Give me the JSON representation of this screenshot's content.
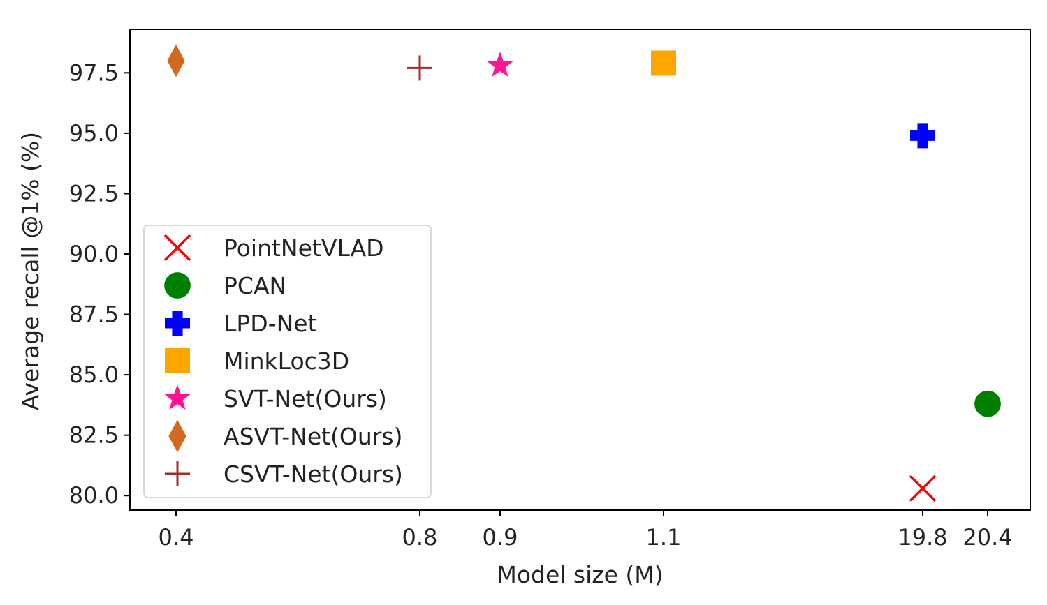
{
  "chart_data": {
    "type": "scatter",
    "title": "",
    "xlabel": "Model size (M)",
    "ylabel": "Average recall @1% (%)",
    "x_scale": "categorical-like (nonlinear ticks)",
    "xticks": [
      "0.4",
      "0.8",
      "0.9",
      "1.1",
      "19.8",
      "20.4"
    ],
    "yticks": [
      "80.0",
      "82.5",
      "85.0",
      "87.5",
      "90.0",
      "92.5",
      "95.0",
      "97.5"
    ],
    "ylim": [
      79.4,
      99.3
    ],
    "grid": false,
    "legend_position": "lower-left",
    "series": [
      {
        "name": "PointNetVLAD",
        "marker": "x",
        "color": "#ff0000",
        "x": "19.8",
        "y": 80.3
      },
      {
        "name": "PCAN",
        "marker": "circle",
        "color": "#008000",
        "x": "20.4",
        "y": 83.8
      },
      {
        "name": "LPD-Net",
        "marker": "plus-filled",
        "color": "#0000ff",
        "x": "19.8",
        "y": 94.9
      },
      {
        "name": "MinkLoc3D",
        "marker": "square",
        "color": "#ffa500",
        "x": "1.1",
        "y": 97.9
      },
      {
        "name": "SVT-Net(Ours)",
        "marker": "star",
        "color": "#ff1493",
        "x": "0.9",
        "y": 97.8
      },
      {
        "name": "ASVT-Net(Ours)",
        "marker": "diamond",
        "color": "#d2691e",
        "x": "0.4",
        "y": 98.0
      },
      {
        "name": "CSVT-Net(Ours)",
        "marker": "plus",
        "color": "#a52a2a",
        "x": "0.8",
        "y": 97.7
      }
    ]
  }
}
